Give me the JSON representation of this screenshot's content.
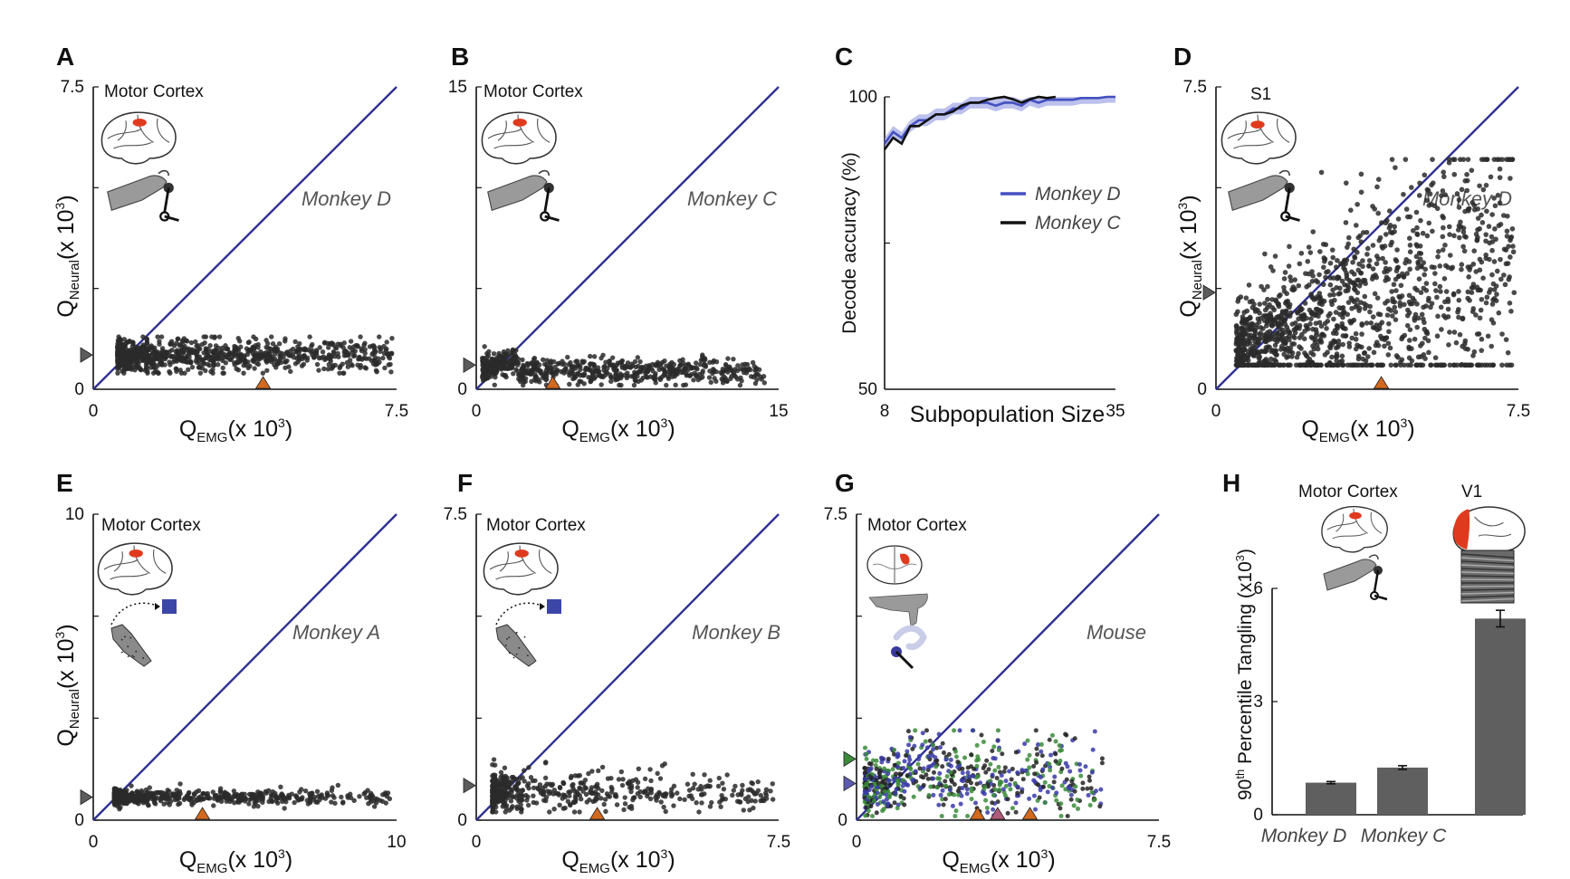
{
  "colors": {
    "diag": "#2E3192",
    "dots": "#2a2a2a",
    "marker_neural": "#5c5c5c",
    "marker_emg": "#D2691E",
    "monkey_d": "#4450c0",
    "monkey_c": "#111111",
    "mouse_green": "#3a8a3a",
    "mouse_blue": "#3a3aa8",
    "cortex_red": "#e03a1e",
    "bar": "#5f5f5f"
  },
  "panels": {
    "A": {
      "label": "A",
      "title": "Motor Cortex",
      "subject": "Monkey D",
      "ymax_label": "7.5",
      "xmax_label": "7.5",
      "zero_x": "0",
      "zero_y": "0",
      "xlabel": "Q_EMG (x 10^3)",
      "ylabel": "Q_Neural (x 10^3)"
    },
    "B": {
      "label": "B",
      "title": "Motor Cortex",
      "subject": "Monkey C",
      "ymax_label": "15",
      "xmax_label": "15",
      "zero_x": "0",
      "zero_y": "0",
      "xlabel": "Q_EMG (x 10^3)"
    },
    "C": {
      "label": "C",
      "ylabel": "Decode accuracy (%)",
      "xlabel": "Subpopulation Size",
      "y_top": "100",
      "y_bottom": "50",
      "x_left": "8",
      "x_right": "35",
      "legend": [
        "Monkey D",
        "Monkey C"
      ]
    },
    "D": {
      "label": "D",
      "title": "S1",
      "subject": "Monkey D",
      "ymax_label": "7.5",
      "xmax_label": "7.5",
      "zero_x": "0",
      "zero_y": "0",
      "xlabel": "Q_EMG (x 10^3)",
      "ylabel": "Q_Neural (x 10^3)"
    },
    "E": {
      "label": "E",
      "title": "Motor Cortex",
      "subject": "Monkey A",
      "ymax_label": "10",
      "xmax_label": "10",
      "zero_x": "0",
      "zero_y": "0",
      "xlabel": "Q_EMG (x 10^3)",
      "ylabel": "Q_Neural (x 10^3)"
    },
    "F": {
      "label": "F",
      "title": "Motor Cortex",
      "subject": "Monkey B",
      "ymax_label": "7.5",
      "xmax_label": "7.5",
      "zero_x": "0",
      "zero_y": "0",
      "xlabel": "Q_EMG (x 10^3)"
    },
    "G": {
      "label": "G",
      "title": "Motor Cortex",
      "subject": "Mouse",
      "ymax_label": "7.5",
      "xmax_label": "7.5",
      "zero_x": "0",
      "zero_y": "0",
      "xlabel": "Q_EMG (x 10^3)"
    },
    "H": {
      "label": "H",
      "title_left": "Motor Cortex",
      "title_right": "V1",
      "ylabel": "90th Percentile Tangling (x10^3)",
      "ticks": [
        "6",
        "3",
        "0"
      ],
      "categories": [
        "Monkey D",
        "Monkey C"
      ]
    }
  },
  "chart_data": [
    {
      "panel": "A",
      "type": "scatter",
      "xlim": [
        0,
        7.5
      ],
      "ylim": [
        0,
        7.5
      ],
      "diagonal": true,
      "x_range": [
        0.6,
        7.4
      ],
      "y_range": [
        0.4,
        1.3
      ],
      "neural_median": 0.85,
      "emg_median": 4.2
    },
    {
      "panel": "B",
      "type": "scatter",
      "xlim": [
        0,
        15
      ],
      "ylim": [
        0,
        15
      ],
      "diagonal": true,
      "x_range": [
        0.2,
        14.5
      ],
      "y_range": [
        0.3,
        2.0
      ],
      "neural_median": 1.2,
      "emg_median": 3.8
    },
    {
      "panel": "C",
      "type": "line",
      "xlim": [
        8,
        35
      ],
      "ylim": [
        50,
        100
      ],
      "series": [
        {
          "name": "Monkey D",
          "x": [
            8,
            9,
            10,
            11,
            12,
            13,
            14,
            15,
            16,
            17,
            18,
            19,
            20,
            21,
            22,
            23,
            24,
            25,
            26,
            27,
            28,
            29,
            30,
            31,
            32,
            33,
            34,
            35
          ],
          "values": [
            92,
            94,
            93,
            95,
            96,
            96,
            97,
            97,
            98,
            98,
            99,
            99,
            99,
            98.5,
            99,
            99,
            98.5,
            99.5,
            99,
            99.5,
            99.5,
            99.5,
            99.5,
            99.8,
            99.8,
            99.8,
            100,
            100
          ]
        },
        {
          "name": "Monkey C",
          "x": [
            8,
            9,
            10,
            11,
            12,
            13,
            14,
            15,
            16,
            17,
            18,
            19,
            20,
            21,
            22,
            23,
            24,
            25,
            26,
            27,
            28
          ],
          "values": [
            91,
            93,
            92,
            95,
            95,
            96,
            97,
            97,
            97.5,
            98.5,
            99,
            99,
            99.5,
            99.8,
            100,
            99.6,
            99,
            99.6,
            100,
            99.8,
            100
          ]
        }
      ]
    },
    {
      "panel": "D",
      "type": "scatter",
      "xlim": [
        0,
        7.5
      ],
      "ylim": [
        0,
        7.5
      ],
      "diagonal": true,
      "x_range": [
        0.5,
        7.4
      ],
      "y_range": [
        0.6,
        5.7
      ],
      "neural_median": 2.4,
      "emg_median": 4.1
    },
    {
      "panel": "E",
      "type": "scatter",
      "xlim": [
        0,
        10
      ],
      "ylim": [
        0,
        10
      ],
      "diagonal": true,
      "x_range": [
        0.7,
        9.9
      ],
      "y_range": [
        0.3,
        1.2
      ],
      "neural_median": 0.75,
      "emg_median": 3.6
    },
    {
      "panel": "F",
      "type": "scatter",
      "xlim": [
        0,
        7.5
      ],
      "ylim": [
        0,
        7.5
      ],
      "diagonal": true,
      "x_range": [
        0.4,
        7.4
      ],
      "y_range": [
        0.2,
        1.5
      ],
      "neural_median": 0.85,
      "emg_median": 3.0
    },
    {
      "panel": "G",
      "type": "scatter",
      "xlim": [
        0,
        7.5
      ],
      "ylim": [
        0,
        7.5
      ],
      "diagonal": true,
      "x_range": [
        0.2,
        6.2
      ],
      "y_range": [
        0.1,
        2.2
      ],
      "neural_markers": [
        1.5,
        0.9
      ],
      "emg_markers": [
        3.0,
        3.5,
        4.3
      ]
    },
    {
      "panel": "H",
      "type": "bar",
      "ylim": [
        0,
        6
      ],
      "categories": [
        "Monkey D",
        "Monkey C",
        "V1"
      ],
      "values": [
        0.85,
        1.25,
        5.2
      ],
      "errors": [
        0.03,
        0.05,
        0.22
      ]
    }
  ]
}
